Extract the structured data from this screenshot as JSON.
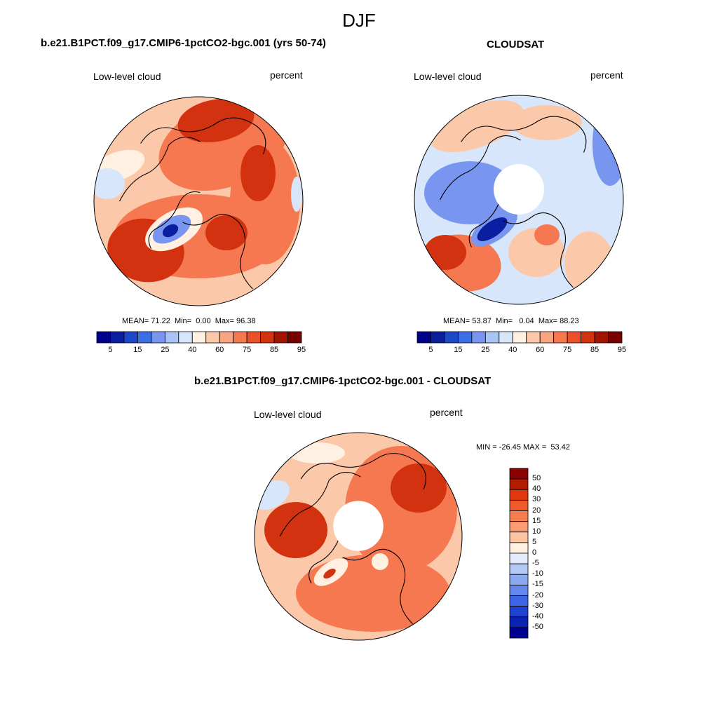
{
  "figure": {
    "title": "DJF"
  },
  "panels": [
    {
      "heading": "b.e21.B1PCT.f09_g17.CMIP6-1pctCO2-bgc.001 (yrs 50-74)",
      "left_label": "Low-level cloud",
      "right_label": "percent",
      "stats": {
        "mean_label": "MEAN=",
        "mean": "71.22",
        "min_label": "Min=",
        "min": "0.00",
        "max_label": "Max=",
        "max": "96.38"
      },
      "hole": false
    },
    {
      "heading": "CLOUDSAT",
      "left_label": "Low-level cloud",
      "right_label": "percent",
      "stats": {
        "mean_label": "MEAN=",
        "mean": "53.87",
        "min_label": "Min=",
        "min": "0.04",
        "max_label": "Max=",
        "max": "88.23"
      },
      "hole": true
    },
    {
      "heading": "b.e21.B1PCT.f09_g17.CMIP6-1pctCO2-bgc.001 - CLOUDSAT",
      "left_label": "Low-level cloud",
      "right_label": "percent",
      "stats_text": "MIN = -26.45 MAX =  53.42",
      "hole": true
    }
  ],
  "abs_colorbar": {
    "colors": [
      "#00008c",
      "#0a1ea0",
      "#1e46c8",
      "#3c6ee6",
      "#7896f0",
      "#aac3f5",
      "#d7e6fa",
      "#fff0e1",
      "#fcc8aa",
      "#faa582",
      "#f57850",
      "#eb5028",
      "#d2320f",
      "#a01400",
      "#780000"
    ],
    "tick_labels": [
      "5",
      "15",
      "25",
      "40",
      "60",
      "75",
      "85",
      "95"
    ]
  },
  "diff_colorbar": {
    "colors": [
      "#8c0000",
      "#b41e00",
      "#e1370f",
      "#f05a2d",
      "#f57d50",
      "#fa9b73",
      "#fcc3a0",
      "#fff0e1",
      "#e1ebfa",
      "#b4c8f5",
      "#8caaf0",
      "#6487eb",
      "#3c64e6",
      "#1e41d2",
      "#0a23b4",
      "#000091"
    ],
    "tick_labels": [
      "50",
      "40",
      "30",
      "20",
      "15",
      "10",
      "5",
      "0",
      "-5",
      "-10",
      "-15",
      "-20",
      "-30",
      "-40",
      "-50"
    ]
  },
  "map_colors": {
    "ocean_low": "#fcc8aa",
    "mid": "#f57850",
    "high": "#d2320f",
    "very_high": "#a01400",
    "neutral": "#fff0e1",
    "light_blue": "#d7e6fa",
    "blue": "#7896f0",
    "deep_blue": "#0a1ea0",
    "coast": "#000000"
  }
}
